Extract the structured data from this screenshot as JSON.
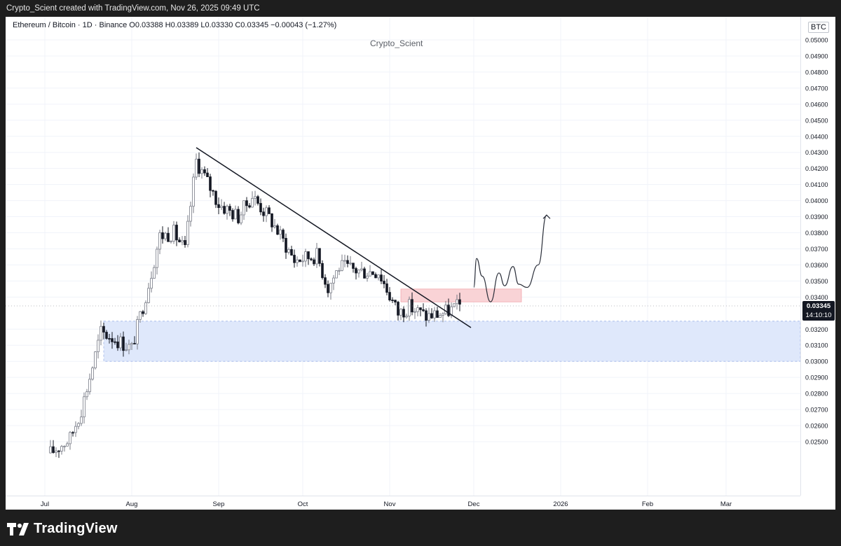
{
  "topbar": {
    "text": "Crypto_Scient created with TradingView.com, Nov 26, 2025 09:49 UTC"
  },
  "chart_header": {
    "symbol_line": "Ethereum / Bitcoin · 1D · Binance  O0.03388  H0.03389  L0.03330  C0.03345  −0.00043 (−1.27%)",
    "watermark": "Crypto_Scient",
    "quote_currency": "BTC"
  },
  "price_axis": {
    "ticks": [
      "0.05000",
      "0.04900",
      "0.04800",
      "0.04700",
      "0.04600",
      "0.04500",
      "0.04400",
      "0.04300",
      "0.04200",
      "0.04100",
      "0.04000",
      "0.03900",
      "0.03800",
      "0.03700",
      "0.03600",
      "0.03500",
      "0.03400",
      "0.03200",
      "0.03100",
      "0.03000",
      "0.02900",
      "0.02800",
      "0.02700",
      "0.02600",
      "0.02500"
    ]
  },
  "last_price": {
    "value": "0.03345",
    "countdown": "14:10:10"
  },
  "time_axis": {
    "labels": [
      "Jul",
      "Aug",
      "Sep",
      "Oct",
      "Nov",
      "Dec",
      "2026",
      "Feb",
      "Mar"
    ]
  },
  "brand": {
    "name": "TradingView"
  },
  "colors": {
    "bull": "#787b86",
    "bear": "#131722",
    "support_zone": "#dfe8fb",
    "resistance_zone": "#f9d3d6",
    "trendline": "#131722",
    "grid": "#f0f3fa"
  },
  "chart_data": {
    "type": "candlestick",
    "symbol": "Ethereum / Bitcoin",
    "timeframe": "1D",
    "exchange": "Binance",
    "ohlc_current": {
      "open": 0.03388,
      "high": 0.03389,
      "low": 0.0333,
      "close": 0.03345,
      "change": -0.00043,
      "change_pct": -1.27
    },
    "y_range": [
      0.0244,
      0.051
    ],
    "close_path": [
      {
        "date": "2025-07-03",
        "close": 0.0243
      },
      {
        "date": "2025-07-10",
        "close": 0.0252
      },
      {
        "date": "2025-07-14",
        "close": 0.027
      },
      {
        "date": "2025-07-17",
        "close": 0.029
      },
      {
        "date": "2025-07-21",
        "close": 0.0318
      },
      {
        "date": "2025-07-25",
        "close": 0.0315
      },
      {
        "date": "2025-08-01",
        "close": 0.0308
      },
      {
        "date": "2025-08-07",
        "close": 0.0348
      },
      {
        "date": "2025-08-11",
        "close": 0.0378
      },
      {
        "date": "2025-08-16",
        "close": 0.038
      },
      {
        "date": "2025-08-20",
        "close": 0.0369
      },
      {
        "date": "2025-08-24",
        "close": 0.0425
      },
      {
        "date": "2025-09-01",
        "close": 0.0398
      },
      {
        "date": "2025-09-08",
        "close": 0.039
      },
      {
        "date": "2025-09-13",
        "close": 0.0403
      },
      {
        "date": "2025-09-20",
        "close": 0.0387
      },
      {
        "date": "2025-09-28",
        "close": 0.0363
      },
      {
        "date": "2025-10-06",
        "close": 0.0366
      },
      {
        "date": "2025-10-10",
        "close": 0.0346
      },
      {
        "date": "2025-10-14",
        "close": 0.0359
      },
      {
        "date": "2025-10-22",
        "close": 0.0356
      },
      {
        "date": "2025-10-28",
        "close": 0.0356
      },
      {
        "date": "2025-11-04",
        "close": 0.033
      },
      {
        "date": "2025-11-08",
        "close": 0.0334
      },
      {
        "date": "2025-11-14",
        "close": 0.0328
      },
      {
        "date": "2025-11-20",
        "close": 0.033
      },
      {
        "date": "2025-11-26",
        "close": 0.03345
      }
    ],
    "zones": [
      {
        "name": "support",
        "from_date": "2025-07-22",
        "to_date": "2026-03-31",
        "low": 0.03,
        "high": 0.0325
      },
      {
        "name": "resistance",
        "from_date": "2025-11-05",
        "to_date": "2025-12-18",
        "low": 0.0337,
        "high": 0.0345
      }
    ],
    "trendline": {
      "from": {
        "date": "2025-08-24",
        "price": 0.0433
      },
      "to": {
        "date": "2025-11-30",
        "price": 0.0321
      }
    },
    "projection": [
      {
        "date": "2025-12-01",
        "price": 0.0346
      },
      {
        "date": "2025-12-02",
        "price": 0.0364
      },
      {
        "date": "2025-12-04",
        "price": 0.0353
      },
      {
        "date": "2025-12-07",
        "price": 0.0337
      },
      {
        "date": "2025-12-10",
        "price": 0.0355
      },
      {
        "date": "2025-12-12",
        "price": 0.0347
      },
      {
        "date": "2025-12-15",
        "price": 0.0359
      },
      {
        "date": "2025-12-17",
        "price": 0.0348
      },
      {
        "date": "2025-12-20",
        "price": 0.0346
      },
      {
        "date": "2025-12-24",
        "price": 0.036
      },
      {
        "date": "2025-12-27",
        "price": 0.0391
      }
    ],
    "grid": true
  }
}
